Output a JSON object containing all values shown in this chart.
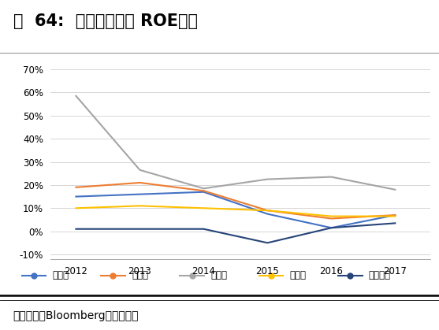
{
  "title": "图  64:  国内重点企业 ROE对比",
  "source": "数据来源：Bloomberg，东北证券",
  "years": [
    2012,
    2013,
    2014,
    2015,
    2016,
    2017
  ],
  "series": [
    {
      "name": "机器人",
      "color": "#4472C4",
      "values": [
        0.15,
        0.16,
        0.17,
        0.075,
        0.015,
        0.07
      ]
    },
    {
      "name": "埃斯顿",
      "color": "#ED7D31",
      "values": [
        0.19,
        0.21,
        0.175,
        0.09,
        0.055,
        0.07
      ]
    },
    {
      "name": "拓斯达",
      "color": "#A5A5A5",
      "values": [
        0.585,
        0.265,
        0.185,
        0.225,
        0.235,
        0.18
      ]
    },
    {
      "name": "新时达",
      "color": "#FFC000",
      "values": [
        0.1,
        0.11,
        0.1,
        0.09,
        0.065,
        0.065
      ]
    },
    {
      "name": "华中数控",
      "color": "#264478",
      "values": [
        0.01,
        0.01,
        0.01,
        -0.05,
        0.015,
        0.035
      ]
    }
  ],
  "ylim": [
    -0.12,
    0.75
  ],
  "yticks": [
    -0.1,
    0.0,
    0.1,
    0.2,
    0.3,
    0.4,
    0.5,
    0.6,
    0.7
  ],
  "background_color": "#FFFFFF",
  "plot_bg_color": "#FFFFFF",
  "grid_color": "#D0D0D0",
  "title_fontsize": 15,
  "axis_fontsize": 8.5,
  "legend_fontsize": 8.5,
  "source_fontsize": 10
}
